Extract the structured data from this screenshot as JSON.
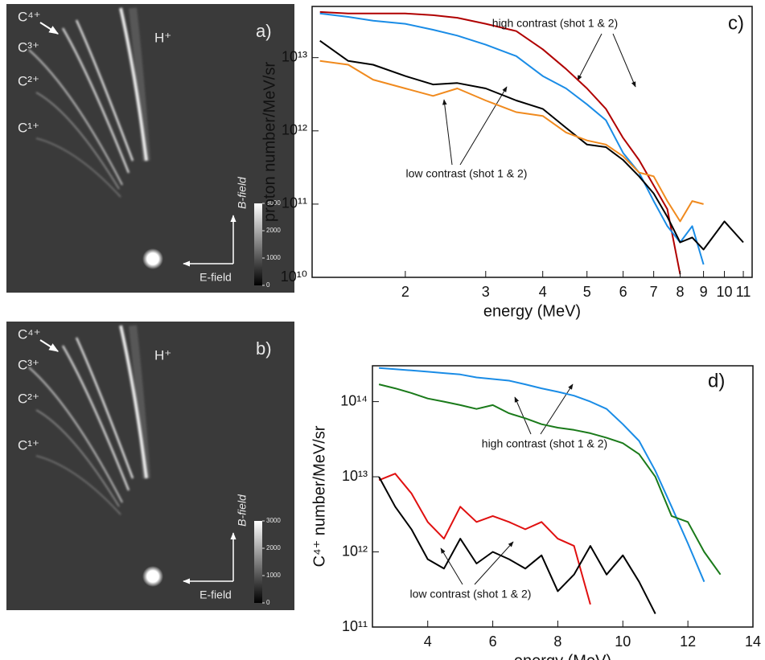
{
  "images": [
    {
      "label": "a)",
      "ions": [
        "C⁴⁺",
        "C³⁺",
        "C²⁺",
        "C¹⁺"
      ],
      "proton": "H⁺",
      "b_field": "B-field",
      "e_field": "E-field",
      "colorbar_lim": [
        0,
        3000
      ],
      "colorbar_ticks": [
        0,
        1000,
        2000,
        3000
      ]
    },
    {
      "label": "b)",
      "ions": [
        "C⁴⁺",
        "C³⁺",
        "C²⁺",
        "C¹⁺"
      ],
      "proton": "H⁺",
      "b_field": "B-field",
      "e_field": "E-field",
      "colorbar_lim": [
        0,
        3000
      ],
      "colorbar_ticks": [
        0,
        1000,
        2000,
        3000
      ]
    }
  ],
  "chart_data": [
    {
      "type": "line",
      "panel_label": "c)",
      "xlabel": "energy (MeV)",
      "ylabel": "proton number/MeV/sr",
      "xscale": "log",
      "yscale": "log",
      "xlim": [
        1.25,
        11.5
      ],
      "ylim": [
        10000000000.0,
        50000000000000.0
      ],
      "xticks": [
        2,
        3,
        4,
        5,
        6,
        7,
        8,
        9,
        10,
        11
      ],
      "yticks": [
        {
          "value": 10000000000.0,
          "label": "10¹⁰"
        },
        {
          "value": 100000000000.0,
          "label": "10¹¹"
        },
        {
          "value": 1000000000000.0,
          "label": "10¹²"
        },
        {
          "value": 10000000000000.0,
          "label": "10¹³"
        }
      ],
      "annotations": [
        "high contrast (shot 1 & 2)",
        "low contrast (shot 1 & 2)"
      ],
      "x": [
        1.3,
        1.5,
        1.7,
        2,
        2.3,
        2.6,
        3,
        3.5,
        4,
        4.5,
        5,
        5.5,
        6,
        6.5,
        7,
        7.5,
        8,
        8.5,
        9,
        10,
        11
      ],
      "series": [
        {
          "color": "#b00000",
          "values": [
            42000000000000.0,
            40000000000000.0,
            40000000000000.0,
            40000000000000.0,
            38000000000000.0,
            35000000000000.0,
            29000000000000.0,
            23000000000000.0,
            13000000000000.0,
            7000000000000.0,
            3800000000000.0,
            2000000000000.0,
            800000000000.0,
            400000000000.0,
            180000000000.0,
            85000000000.0,
            11000000000.0,
            null,
            null,
            null,
            null
          ]
        },
        {
          "color": "#1a8ce6",
          "values": [
            40000000000000.0,
            36000000000000.0,
            32000000000000.0,
            29000000000000.0,
            24000000000000.0,
            20000000000000.0,
            15000000000000.0,
            10500000000000.0,
            5600000000000.0,
            3800000000000.0,
            2300000000000.0,
            1400000000000.0,
            500000000000.0,
            270000000000.0,
            110000000000.0,
            50000000000.0,
            30000000000.0,
            50000000000.0,
            15000000000.0,
            null,
            null
          ]
        },
        {
          "color": "#000000",
          "values": [
            17000000000000.0,
            9000000000000.0,
            8000000000000.0,
            5600000000000.0,
            4300000000000.0,
            4500000000000.0,
            3800000000000.0,
            2600000000000.0,
            2000000000000.0,
            1100000000000.0,
            650000000000.0,
            600000000000.0,
            400000000000.0,
            240000000000.0,
            140000000000.0,
            67000000000.0,
            30000000000.0,
            35000000000.0,
            24000000000.0,
            58000000000.0,
            30000000000.0
          ]
        },
        {
          "color": "#f08a1e",
          "values": [
            9000000000000.0,
            8000000000000.0,
            5000000000000.0,
            3800000000000.0,
            3000000000000.0,
            3800000000000.0,
            2600000000000.0,
            1800000000000.0,
            1600000000000.0,
            950000000000.0,
            740000000000.0,
            650000000000.0,
            450000000000.0,
            270000000000.0,
            240000000000.0,
            110000000000.0,
            58000000000.0,
            110000000000.0,
            100000000000.0,
            null,
            null
          ]
        }
      ]
    },
    {
      "type": "line",
      "panel_label": "d)",
      "xlabel": "energy (MeV)",
      "ylabel": "C⁴⁺ number/MeV/sr",
      "xscale": "linear",
      "yscale": "log",
      "xlim": [
        2.3,
        14
      ],
      "ylim": [
        100000000000.0,
        300000000000000.0
      ],
      "xticks": [
        4,
        6,
        8,
        10,
        12,
        14
      ],
      "yticks": [
        {
          "value": 100000000000.0,
          "label": "10¹¹"
        },
        {
          "value": 1000000000000.0,
          "label": "10¹²"
        },
        {
          "value": 10000000000000.0,
          "label": "10¹³"
        },
        {
          "value": 100000000000000.0,
          "label": "10¹⁴"
        }
      ],
      "annotations": [
        "high contrast (shot 1 & 2)",
        "low contrast (shot 1 & 2)"
      ],
      "x": [
        2.5,
        3,
        3.5,
        4,
        4.5,
        5,
        5.5,
        6,
        6.5,
        7,
        7.5,
        8,
        8.5,
        9,
        9.5,
        10,
        10.5,
        11,
        11.5,
        12,
        12.5,
        13
      ],
      "series": [
        {
          "color": "#1a8ce6",
          "values": [
            280000000000000.0,
            270000000000000.0,
            260000000000000.0,
            250000000000000.0,
            240000000000000.0,
            230000000000000.0,
            210000000000000.0,
            200000000000000.0,
            190000000000000.0,
            170000000000000.0,
            150000000000000.0,
            135000000000000.0,
            120000000000000.0,
            100000000000000.0,
            80000000000000.0,
            50000000000000.0,
            30000000000000.0,
            12000000000000.0,
            4000000000000.0,
            1300000000000.0,
            400000000000.0,
            null
          ]
        },
        {
          "color": "#1a7a1a",
          "values": [
            170000000000000.0,
            150000000000000.0,
            130000000000000.0,
            110000000000000.0,
            100000000000000.0,
            90000000000000.0,
            80000000000000.0,
            90000000000000.0,
            70000000000000.0,
            60000000000000.0,
            50000000000000.0,
            45000000000000.0,
            42000000000000.0,
            38000000000000.0,
            33000000000000.0,
            28000000000000.0,
            20000000000000.0,
            10000000000000.0,
            3000000000000.0,
            2500000000000.0,
            1000000000000.0,
            500000000000.0
          ]
        },
        {
          "color": "#e01010",
          "values": [
            9000000000000.0,
            11000000000000.0,
            6000000000000.0,
            2500000000000.0,
            1500000000000.0,
            4000000000000.0,
            2500000000000.0,
            3000000000000.0,
            2500000000000.0,
            2000000000000.0,
            2500000000000.0,
            1500000000000.0,
            1200000000000.0,
            200000000000.0,
            null,
            null,
            null,
            null,
            null,
            null,
            null,
            null
          ]
        },
        {
          "color": "#000000",
          "values": [
            10000000000000.0,
            4000000000000.0,
            2000000000000.0,
            800000000000.0,
            600000000000.0,
            1500000000000.0,
            700000000000.0,
            1000000000000.0,
            800000000000.0,
            600000000000.0,
            900000000000.0,
            300000000000.0,
            500000000000.0,
            1200000000000.0,
            500000000000.0,
            900000000000.0,
            400000000000.0,
            150000000000.0,
            null,
            null,
            null,
            null
          ]
        }
      ]
    }
  ]
}
